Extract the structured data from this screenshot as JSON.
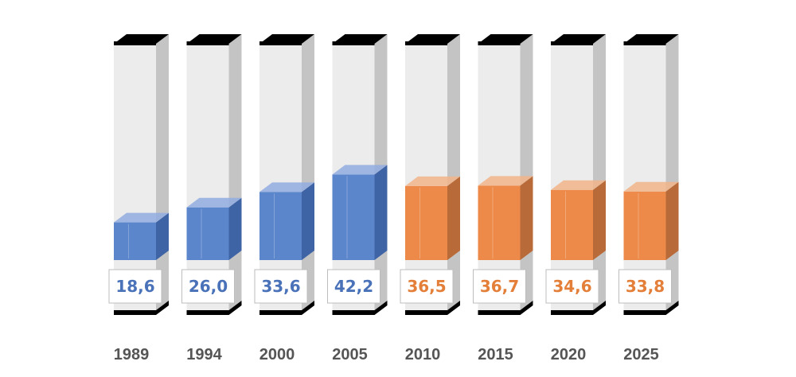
{
  "chart_data": {
    "type": "bar",
    "categories": [
      "1989",
      "1994",
      "2000",
      "2005",
      "2010",
      "2015",
      "2020",
      "2025"
    ],
    "values": [
      18.6,
      26.0,
      33.6,
      42.2,
      36.5,
      36.7,
      34.6,
      33.8
    ],
    "data_labels": [
      "18,6",
      "26,0",
      "33,6",
      "42,2",
      "36,5",
      "36,7",
      "34,6",
      "33,8"
    ],
    "segment": [
      "historical",
      "historical",
      "historical",
      "historical",
      "forecast",
      "forecast",
      "forecast",
      "forecast"
    ],
    "ylim": [
      0,
      100
    ],
    "grid": false,
    "legend": "none",
    "colors": {
      "historical_fill": "#5b86cc",
      "historical_side": "#3f64a6",
      "historical_top": "#93ade0",
      "historical_text": "#4a72b8",
      "forecast_fill": "#ed8a4a",
      "forecast_side": "#b86a38",
      "forecast_top": "#f2b48a",
      "forecast_text": "#e47f3a",
      "column_front": "#ececec",
      "column_side": "#c4c4c4",
      "column_cap": "#000000",
      "year_text": "#555555"
    }
  }
}
